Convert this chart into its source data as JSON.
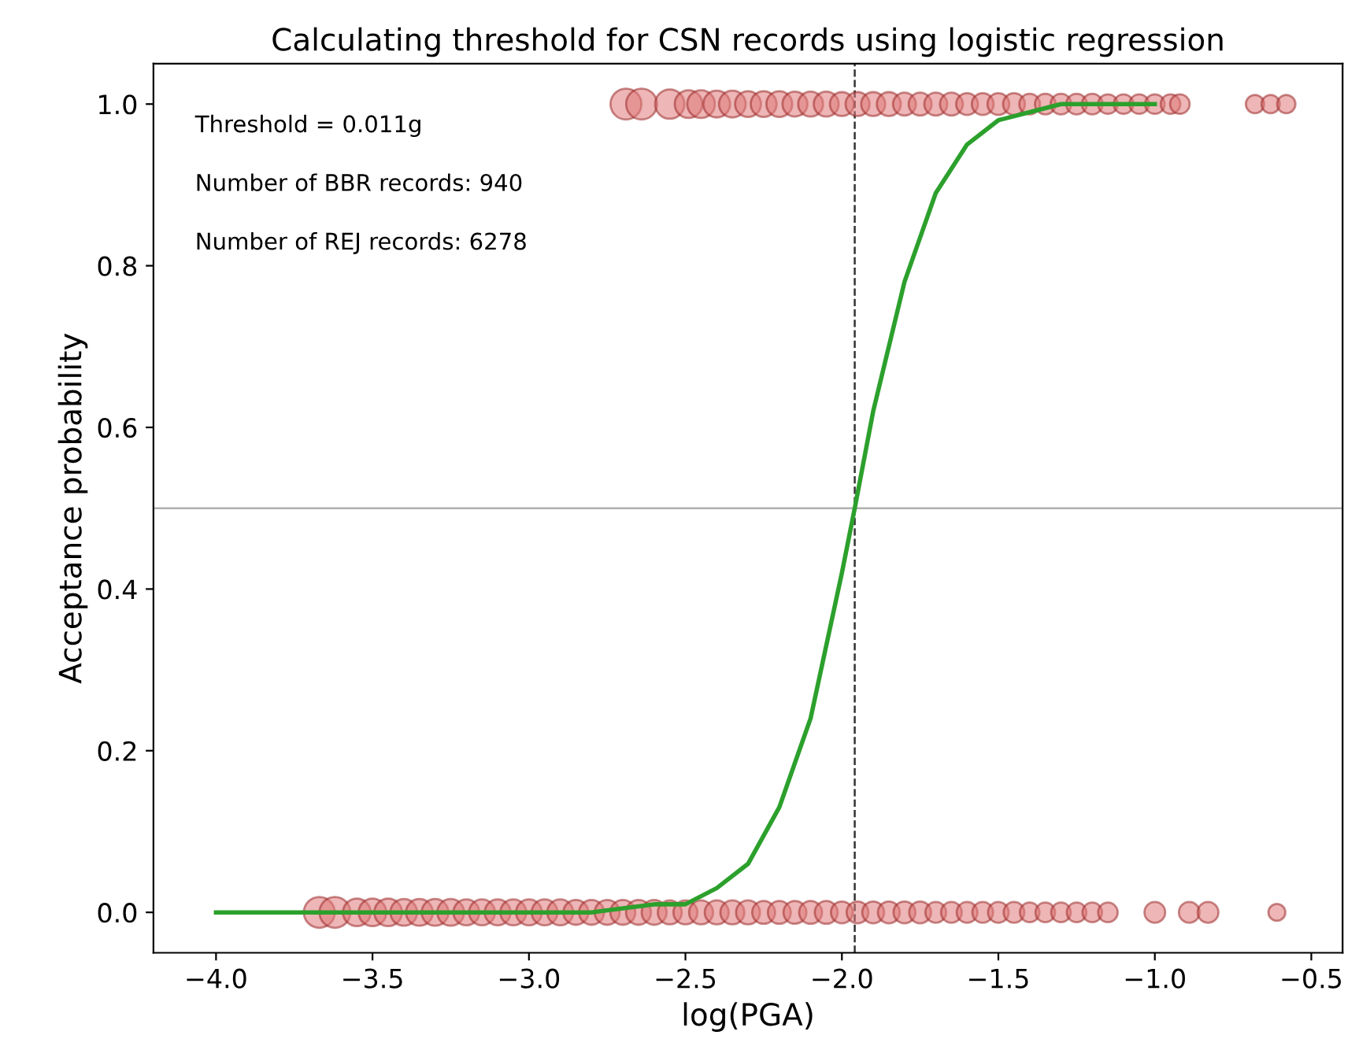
{
  "chart_data": {
    "type": "scatter",
    "title": "Calculating threshold for CSN records using logistic regression",
    "xlabel": "log(PGA)",
    "ylabel": "Acceptance probability",
    "xlim": [
      -4.2,
      -0.4
    ],
    "xticks": [
      {
        "value": -4.0,
        "label": "−4.0"
      },
      {
        "value": -3.5,
        "label": "−3.5"
      },
      {
        "value": -3.0,
        "label": "−3.0"
      },
      {
        "value": -2.5,
        "label": "−2.5"
      },
      {
        "value": -2.0,
        "label": "−2.0"
      },
      {
        "value": -1.5,
        "label": "−1.5"
      },
      {
        "value": -1.0,
        "label": "−1.0"
      },
      {
        "value": -0.5,
        "label": "−0.5"
      }
    ],
    "ylim": [
      -0.05,
      1.05
    ],
    "yticks": [
      {
        "value": 0,
        "label": "0.0"
      },
      {
        "value": 0.2,
        "label": "0.2"
      },
      {
        "value": 0.4,
        "label": "0.4"
      },
      {
        "value": 0.6,
        "label": "0.6"
      },
      {
        "value": 0.8,
        "label": "0.8"
      },
      {
        "value": 1,
        "label": "1.0"
      }
    ],
    "grid": false,
    "marker": "circle",
    "series": [
      {
        "color": "#e07a7a",
        "x": [
          -2.69,
          -2.64,
          -2.55,
          -2.49,
          -2.45,
          -2.4,
          -2.35,
          -2.3,
          -2.25,
          -2.2,
          -2.15,
          -2.1,
          -2.05,
          -2.0,
          -1.95,
          -1.9,
          -1.85,
          -1.8,
          -1.75,
          -1.7,
          -1.65,
          -1.6,
          -1.55,
          -1.5,
          -1.45,
          -1.4,
          -1.35,
          -1.3,
          -1.25,
          -1.2,
          -1.15,
          -1.1,
          -1.05,
          -1.0,
          -0.95,
          -0.92,
          -0.68,
          -0.63,
          -0.58
        ],
        "values": [
          1,
          1,
          1,
          1,
          1,
          1,
          1,
          1,
          1,
          1,
          1,
          1,
          1,
          1,
          1,
          1,
          1,
          1,
          1,
          1,
          1,
          1,
          1,
          1,
          1,
          1,
          1,
          1,
          1,
          1,
          1,
          1,
          1,
          1,
          1,
          1,
          1,
          1,
          1
        ],
        "sizes": [
          1,
          1,
          0.9,
          0.8,
          0.8,
          0.75,
          0.75,
          0.7,
          0.7,
          0.7,
          0.65,
          0.65,
          0.65,
          0.6,
          0.6,
          0.6,
          0.6,
          0.55,
          0.55,
          0.55,
          0.55,
          0.5,
          0.5,
          0.5,
          0.5,
          0.45,
          0.45,
          0.45,
          0.45,
          0.45,
          0.4,
          0.4,
          0.4,
          0.4,
          0.4,
          0.4,
          0.35,
          0.35,
          0.35
        ]
      },
      {
        "color": "#e07a7a",
        "x": [
          -3.67,
          -3.62,
          -3.55,
          -3.5,
          -3.45,
          -3.4,
          -3.35,
          -3.3,
          -3.25,
          -3.2,
          -3.15,
          -3.1,
          -3.05,
          -3.0,
          -2.95,
          -2.9,
          -2.85,
          -2.8,
          -2.75,
          -2.7,
          -2.65,
          -2.6,
          -2.55,
          -2.5,
          -2.45,
          -2.4,
          -2.35,
          -2.3,
          -2.25,
          -2.2,
          -2.15,
          -2.1,
          -2.05,
          -2.0,
          -1.95,
          -1.9,
          -1.85,
          -1.8,
          -1.75,
          -1.7,
          -1.65,
          -1.6,
          -1.55,
          -1.5,
          -1.45,
          -1.4,
          -1.35,
          -1.3,
          -1.25,
          -1.2,
          -1.15,
          -1.0,
          -0.89,
          -0.83,
          -0.61
        ],
        "values": [
          0,
          0,
          0,
          0,
          0,
          0,
          0,
          0,
          0,
          0,
          0,
          0,
          0,
          0,
          0,
          0,
          0,
          0,
          0,
          0,
          0,
          0,
          0,
          0,
          0,
          0,
          0,
          0,
          0,
          0,
          0,
          0,
          0,
          0,
          0,
          0,
          0,
          0,
          0,
          0,
          0,
          0,
          0,
          0,
          0,
          0,
          0,
          0,
          0,
          0,
          0,
          0,
          0,
          0,
          0
        ],
        "sizes": [
          1,
          1,
          0.8,
          0.8,
          0.8,
          0.75,
          0.75,
          0.75,
          0.75,
          0.7,
          0.7,
          0.7,
          0.7,
          0.7,
          0.7,
          0.7,
          0.65,
          0.65,
          0.65,
          0.65,
          0.65,
          0.65,
          0.6,
          0.6,
          0.6,
          0.6,
          0.6,
          0.6,
          0.55,
          0.55,
          0.55,
          0.55,
          0.55,
          0.5,
          0.5,
          0.5,
          0.5,
          0.5,
          0.5,
          0.45,
          0.45,
          0.45,
          0.45,
          0.45,
          0.45,
          0.4,
          0.4,
          0.4,
          0.4,
          0.4,
          0.4,
          0.45,
          0.45,
          0.45,
          0.3
        ]
      },
      {
        "type": "line",
        "color": "#2ca02c",
        "line_style": "solid",
        "marker": "none",
        "x": [
          -4.0,
          -3.5,
          -3.0,
          -2.8,
          -2.6,
          -2.5,
          -2.4,
          -2.3,
          -2.2,
          -2.1,
          -2.0,
          -1.959,
          -1.9,
          -1.8,
          -1.7,
          -1.6,
          -1.5,
          -1.4,
          -1.3,
          -1.2,
          -1.0
        ],
        "values": [
          0,
          0,
          0,
          0,
          0.01,
          0.01,
          0.03,
          0.06,
          0.13,
          0.24,
          0.42,
          0.5,
          0.62,
          0.78,
          0.89,
          0.95,
          0.98,
          0.99,
          1,
          1,
          1
        ]
      }
    ],
    "ref_lines": [
      {
        "axis": "x",
        "value": -1.959,
        "color": "#333333",
        "line_style": "dashed"
      },
      {
        "axis": "y",
        "value": 0.5,
        "color": "#b0b0b0",
        "line_style": "solid"
      }
    ],
    "annotations": [
      "Threshold = 0.011g",
      "Number of BBR records: 940",
      "Number of REJ records: 6278"
    ]
  }
}
